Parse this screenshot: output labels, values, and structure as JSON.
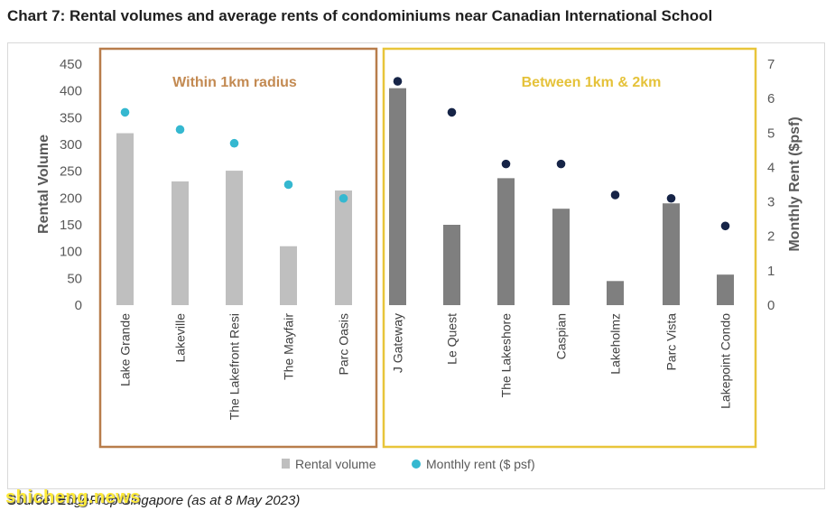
{
  "title": "Chart 7: Rental volumes and average rents of condominiums near Canadian International School",
  "source": "Source: EdgeProp Singapore (as at 8 May 2023)",
  "watermark": "shicheng.news",
  "colors": {
    "bar_group1": "#bfbfbf",
    "bar_group2": "#7f7f7f",
    "dot_group1": "#35b8d0",
    "dot_group2": "#162447",
    "box_group1": "#b87d4b",
    "box_group2": "#e8c53a",
    "label_group1": "#c38a52",
    "label_group2": "#e5c23a"
  },
  "chart_data": {
    "type": "bar",
    "categories": [
      "Lake Grande",
      "Lakeville",
      "The Lakefront Resi",
      "The Mayfair",
      "Parc Oasis",
      "J Gateway",
      "Le Quest",
      "The Lakeshore",
      "Caspian",
      "Lakeholmz",
      "Parc Vista",
      "Lakepoint Condo"
    ],
    "groups": [
      {
        "label": "Within 1km radius",
        "categories": [
          "Lake Grande",
          "Lakeville",
          "The Lakefront Resi",
          "The Mayfair",
          "Parc Oasis"
        ]
      },
      {
        "label": "Between 1km & 2km",
        "categories": [
          "J Gateway",
          "Le Quest",
          "The Lakeshore",
          "Caspian",
          "Lakeholmz",
          "Parc Vista",
          "Lakepoint Condo"
        ]
      }
    ],
    "series": [
      {
        "name": "Rental volume",
        "kind": "bar",
        "axis": "left",
        "values": [
          321,
          231,
          251,
          110,
          214,
          405,
          150,
          237,
          180,
          45,
          190,
          57
        ]
      },
      {
        "name": "Monthly rent ($ psf)",
        "kind": "dot",
        "axis": "right",
        "values": [
          5.6,
          5.1,
          4.7,
          3.5,
          3.1,
          6.5,
          5.6,
          4.1,
          4.1,
          3.2,
          3.1,
          2.3
        ]
      }
    ],
    "ylabel": "Rental Volume",
    "y2label": "Monthly Rent ($psf)",
    "ylim": [
      0,
      450
    ],
    "yticks": [
      "450",
      "400",
      "350",
      "300",
      "250",
      "200",
      "150",
      "100",
      "50",
      "0"
    ],
    "y2lim": [
      0,
      7
    ],
    "y2ticks": [
      "7",
      "6",
      "5",
      "4",
      "3",
      "2",
      "1",
      "0"
    ],
    "legend_position": "bottom",
    "grid": false
  }
}
